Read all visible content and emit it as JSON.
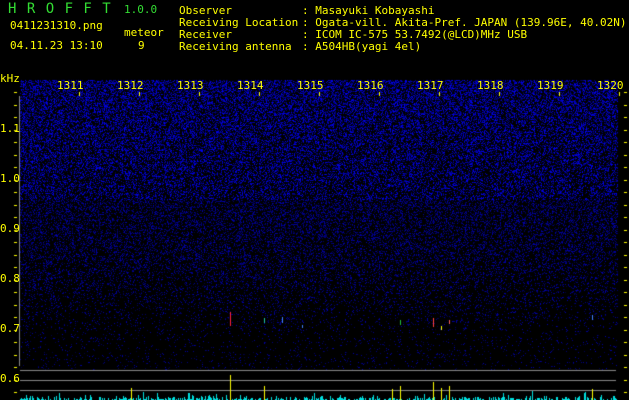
{
  "header": {
    "app_title": "H R O F F T",
    "version": "1.0.0",
    "filename": "0411231310.png",
    "datetime": "04.11.23 13:10",
    "meteor_label": "meteor",
    "meteor_count": "9"
  },
  "info": [
    {
      "label": "Observer",
      "value": ": Masayuki Kobayashi"
    },
    {
      "label": "Receiving Location",
      "value": ": Ogata-vill. Akita-Pref. JAPAN (139.96E, 40.02N)"
    },
    {
      "label": "Receiver",
      "value": ": ICOM IC-575 53.7492(@LCD)MHz USB"
    },
    {
      "label": "Receiving antenna",
      "value": ": A504HB(yagi 4el)"
    }
  ],
  "axis": {
    "unit": "kHz",
    "y_ticks": [
      "1.1",
      "1.0",
      "0.9",
      "0.8",
      "0.7",
      "0.6"
    ],
    "x_ticks": [
      "1311",
      "1312",
      "1313",
      "1314",
      "1315",
      "1316",
      "1317",
      "1318",
      "1319",
      "1320"
    ]
  },
  "colors": {
    "text": "#ffff00",
    "title": "#33dd33",
    "noise": "#2020c0",
    "counts": "#00e0e0",
    "meteor_bar": "#ffff00",
    "gridline": "#888888"
  }
}
